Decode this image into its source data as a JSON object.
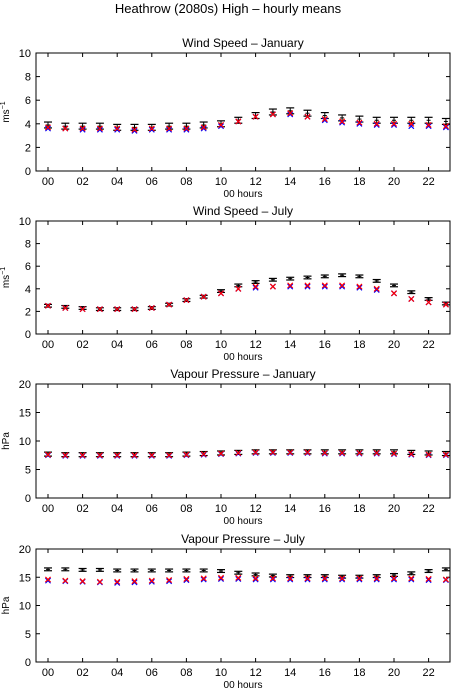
{
  "figure": {
    "title": "Heathrow (2080s) High – hourly means"
  },
  "colors": {
    "black_bar": "#000000",
    "red_marker": "#ff0000",
    "blue_marker": "#0000ff"
  },
  "chart_data": [
    {
      "type": "line",
      "title": "Wind Speed – January",
      "xlabel": "00 hours",
      "ylabel": "ms",
      "ylabel_superscript": "−1",
      "ylim": [
        0,
        10
      ],
      "yticks": [
        0,
        2,
        4,
        6,
        8,
        10
      ],
      "xticks": [
        "00",
        "02",
        "04",
        "06",
        "08",
        "10",
        "12",
        "14",
        "16",
        "18",
        "20",
        "22"
      ],
      "x": [
        0,
        1,
        2,
        3,
        4,
        5,
        6,
        7,
        8,
        9,
        10,
        11,
        12,
        13,
        14,
        15,
        16,
        17,
        18,
        19,
        20,
        21,
        22,
        23
      ],
      "grid": false,
      "series": [
        {
          "marker": "errorbar",
          "color": "#000000",
          "values": [
            3.9,
            3.8,
            3.8,
            3.8,
            3.7,
            3.7,
            3.7,
            3.8,
            3.8,
            3.9,
            4.0,
            4.3,
            4.7,
            5.0,
            5.1,
            4.9,
            4.7,
            4.5,
            4.4,
            4.3,
            4.3,
            4.3,
            4.3,
            4.2
          ],
          "err": [
            0.25,
            0.25,
            0.25,
            0.25,
            0.25,
            0.25,
            0.25,
            0.25,
            0.25,
            0.25,
            0.25,
            0.25,
            0.25,
            0.25,
            0.25,
            0.25,
            0.25,
            0.25,
            0.25,
            0.25,
            0.25,
            0.25,
            0.25,
            0.25
          ]
        },
        {
          "marker": "x",
          "color": "#0000ff",
          "values": [
            3.6,
            3.6,
            3.5,
            3.5,
            3.5,
            3.4,
            3.5,
            3.5,
            3.5,
            3.6,
            3.8,
            4.2,
            4.6,
            4.8,
            4.8,
            4.6,
            4.3,
            4.1,
            4.0,
            3.9,
            3.9,
            3.8,
            3.8,
            3.7
          ]
        },
        {
          "marker": "x",
          "color": "#ff0000",
          "values": [
            3.7,
            3.6,
            3.6,
            3.6,
            3.6,
            3.5,
            3.6,
            3.6,
            3.6,
            3.7,
            3.9,
            4.2,
            4.6,
            4.8,
            4.9,
            4.6,
            4.4,
            4.2,
            4.1,
            4.0,
            4.0,
            4.0,
            3.9,
            3.8
          ]
        }
      ]
    },
    {
      "type": "line",
      "title": "Wind Speed – July",
      "xlabel": "00 hours",
      "ylabel": "ms",
      "ylabel_superscript": "−1",
      "ylim": [
        0,
        10
      ],
      "yticks": [
        0,
        2,
        4,
        6,
        8,
        10
      ],
      "xticks": [
        "00",
        "02",
        "04",
        "06",
        "08",
        "10",
        "12",
        "14",
        "16",
        "18",
        "20",
        "22"
      ],
      "x": [
        0,
        1,
        2,
        3,
        4,
        5,
        6,
        7,
        8,
        9,
        10,
        11,
        12,
        13,
        14,
        15,
        16,
        17,
        18,
        19,
        20,
        21,
        22,
        23
      ],
      "grid": false,
      "series": [
        {
          "marker": "errorbar",
          "color": "#000000",
          "values": [
            2.5,
            2.4,
            2.3,
            2.2,
            2.2,
            2.2,
            2.3,
            2.6,
            3.0,
            3.3,
            3.8,
            4.3,
            4.6,
            4.8,
            4.9,
            5.0,
            5.1,
            5.2,
            5.1,
            4.7,
            4.3,
            3.7,
            3.1,
            2.7
          ],
          "err": [
            0.12,
            0.12,
            0.12,
            0.12,
            0.12,
            0.12,
            0.12,
            0.12,
            0.12,
            0.12,
            0.12,
            0.12,
            0.12,
            0.12,
            0.12,
            0.12,
            0.12,
            0.12,
            0.12,
            0.12,
            0.12,
            0.12,
            0.12,
            0.12
          ]
        },
        {
          "marker": "x",
          "color": "#0000ff",
          "values": [
            2.5,
            2.3,
            2.2,
            2.2,
            2.2,
            2.2,
            2.3,
            2.6,
            3.0,
            3.3,
            3.6,
            4.0,
            4.1,
            4.2,
            4.2,
            4.2,
            4.2,
            4.2,
            4.1,
            3.9,
            3.6,
            3.1,
            2.8,
            2.6
          ]
        },
        {
          "marker": "x",
          "color": "#ff0000",
          "values": [
            2.5,
            2.3,
            2.2,
            2.2,
            2.2,
            2.2,
            2.3,
            2.6,
            3.0,
            3.3,
            3.6,
            4.0,
            4.2,
            4.2,
            4.3,
            4.3,
            4.3,
            4.3,
            4.2,
            4.0,
            3.6,
            3.1,
            2.8,
            2.6
          ]
        }
      ]
    },
    {
      "type": "line",
      "title": "Vapour Pressure – January",
      "xlabel": "00 hours",
      "ylabel": "hPa",
      "ylim": [
        0,
        20
      ],
      "yticks": [
        0,
        5,
        10,
        15,
        20
      ],
      "xticks": [
        "00",
        "02",
        "04",
        "06",
        "08",
        "10",
        "12",
        "14",
        "16",
        "18",
        "20",
        "22"
      ],
      "x": [
        0,
        1,
        2,
        3,
        4,
        5,
        6,
        7,
        8,
        9,
        10,
        11,
        12,
        13,
        14,
        15,
        16,
        17,
        18,
        19,
        20,
        21,
        22,
        23
      ],
      "grid": false,
      "series": [
        {
          "marker": "errorbar",
          "color": "#000000",
          "values": [
            7.7,
            7.6,
            7.6,
            7.6,
            7.6,
            7.6,
            7.6,
            7.6,
            7.7,
            7.8,
            7.9,
            8.0,
            8.1,
            8.1,
            8.1,
            8.1,
            8.1,
            8.1,
            8.1,
            8.1,
            8.1,
            8.0,
            7.9,
            7.8
          ],
          "err": [
            0.35,
            0.35,
            0.35,
            0.35,
            0.35,
            0.35,
            0.35,
            0.35,
            0.35,
            0.35,
            0.35,
            0.35,
            0.35,
            0.35,
            0.35,
            0.35,
            0.35,
            0.35,
            0.35,
            0.35,
            0.35,
            0.35,
            0.35,
            0.35
          ]
        },
        {
          "marker": "x",
          "color": "#0000ff",
          "values": [
            7.5,
            7.4,
            7.4,
            7.4,
            7.4,
            7.4,
            7.4,
            7.4,
            7.5,
            7.6,
            7.7,
            7.8,
            7.9,
            7.9,
            7.9,
            7.9,
            7.8,
            7.8,
            7.8,
            7.8,
            7.7,
            7.6,
            7.5,
            7.5
          ]
        },
        {
          "marker": "x",
          "color": "#ff0000",
          "values": [
            7.6,
            7.5,
            7.5,
            7.5,
            7.5,
            7.5,
            7.5,
            7.5,
            7.6,
            7.7,
            7.8,
            7.9,
            8.0,
            8.0,
            8.0,
            8.0,
            7.9,
            7.9,
            7.9,
            7.9,
            7.8,
            7.7,
            7.6,
            7.6
          ]
        }
      ]
    },
    {
      "type": "line",
      "title": "Vapour Pressure – July",
      "xlabel": "00 hours",
      "ylabel": "hPa",
      "ylim": [
        0,
        20
      ],
      "yticks": [
        0,
        5,
        10,
        15,
        20
      ],
      "xticks": [
        "00",
        "02",
        "04",
        "06",
        "08",
        "10",
        "12",
        "14",
        "16",
        "18",
        "20",
        "22"
      ],
      "x": [
        0,
        1,
        2,
        3,
        4,
        5,
        6,
        7,
        8,
        9,
        10,
        11,
        12,
        13,
        14,
        15,
        16,
        17,
        18,
        19,
        20,
        21,
        22,
        23
      ],
      "grid": false,
      "series": [
        {
          "marker": "errorbar",
          "color": "#000000",
          "values": [
            16.4,
            16.4,
            16.3,
            16.3,
            16.2,
            16.2,
            16.2,
            16.2,
            16.2,
            16.2,
            16.1,
            15.8,
            15.5,
            15.3,
            15.2,
            15.2,
            15.2,
            15.1,
            15.1,
            15.2,
            15.4,
            15.7,
            16.1,
            16.4
          ],
          "err": [
            0.25,
            0.25,
            0.25,
            0.25,
            0.25,
            0.25,
            0.25,
            0.25,
            0.25,
            0.25,
            0.25,
            0.25,
            0.25,
            0.25,
            0.25,
            0.25,
            0.25,
            0.25,
            0.25,
            0.25,
            0.25,
            0.25,
            0.25,
            0.25
          ]
        },
        {
          "marker": "x",
          "color": "#0000ff",
          "values": [
            14.4,
            14.3,
            14.2,
            14.1,
            14.0,
            14.1,
            14.2,
            14.3,
            14.5,
            14.6,
            14.7,
            14.7,
            14.6,
            14.6,
            14.6,
            14.6,
            14.6,
            14.6,
            14.6,
            14.6,
            14.6,
            14.6,
            14.5,
            14.5
          ]
        },
        {
          "marker": "x",
          "color": "#ff0000",
          "values": [
            14.6,
            14.4,
            14.3,
            14.2,
            14.2,
            14.3,
            14.4,
            14.5,
            14.7,
            14.8,
            14.9,
            14.9,
            14.8,
            14.8,
            14.8,
            14.8,
            14.8,
            14.8,
            14.8,
            14.8,
            14.8,
            14.8,
            14.7,
            14.6
          ]
        }
      ]
    }
  ]
}
